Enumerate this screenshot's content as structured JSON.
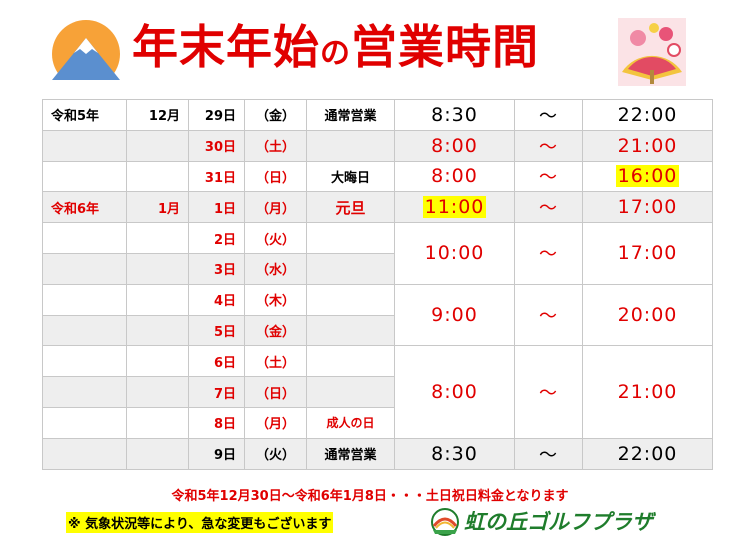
{
  "title": {
    "main": "年末年始",
    "particle": "の",
    "tail": "営業時間"
  },
  "rows": [
    {
      "era": "令和5年",
      "month": "12月",
      "day": "29日",
      "weekday": "（金）",
      "note": "通常営業",
      "open": "8:30",
      "sep": "～",
      "close": "22:00"
    },
    {
      "era": "",
      "month": "",
      "day": "30日",
      "weekday": "（土）",
      "note": "",
      "open": "8:00",
      "sep": "～",
      "close": "21:00"
    },
    {
      "era": "",
      "month": "",
      "day": "31日",
      "weekday": "（日）",
      "note": "大晦日",
      "open": "8:00",
      "sep": "～",
      "close": "16:00"
    },
    {
      "era": "令和6年",
      "month": "1月",
      "day": "1日",
      "weekday": "（月）",
      "note": "元旦",
      "open": "11:00",
      "sep": "～",
      "close": "17:00"
    },
    {
      "era": "",
      "month": "",
      "day": "2日",
      "weekday": "（火）",
      "note": "",
      "open": "10:00",
      "sep": "～",
      "close": "17:00"
    },
    {
      "era": "",
      "month": "",
      "day": "3日",
      "weekday": "（水）",
      "note": ""
    },
    {
      "era": "",
      "month": "",
      "day": "4日",
      "weekday": "（木）",
      "note": "",
      "open": "9:00",
      "sep": "～",
      "close": "20:00"
    },
    {
      "era": "",
      "month": "",
      "day": "5日",
      "weekday": "（金）",
      "note": ""
    },
    {
      "era": "",
      "month": "",
      "day": "6日",
      "weekday": "（土）",
      "note": "",
      "open": "8:00",
      "sep": "～",
      "close": "21:00"
    },
    {
      "era": "",
      "month": "",
      "day": "7日",
      "weekday": "（日）",
      "note": ""
    },
    {
      "era": "",
      "month": "",
      "day": "8日",
      "weekday": "（月）",
      "note": "成人の日"
    },
    {
      "era": "",
      "month": "",
      "day": "9日",
      "weekday": "（火）",
      "note": "通常営業",
      "open": "8:30",
      "sep": "～",
      "close": "22:00"
    }
  ],
  "footer": {
    "rate_note": "令和5年12月30日～令和6年1月8日・・・土日祝日料金となります",
    "weather_note": "※  気象状況等により、急な変更もございます"
  },
  "logo": {
    "text": "虹の丘ゴルフプラザ"
  },
  "colors": {
    "accent_red": "#e00000",
    "highlight": "#ffff00",
    "logo_green": "#1f7d2c",
    "row_gray": "#eeeeee"
  },
  "icons": {
    "left_decoration": "mount-fuji-sunrise-icon",
    "right_decoration": "new-year-fan-icon",
    "logo_mark": "golf-ball-logo-icon"
  }
}
